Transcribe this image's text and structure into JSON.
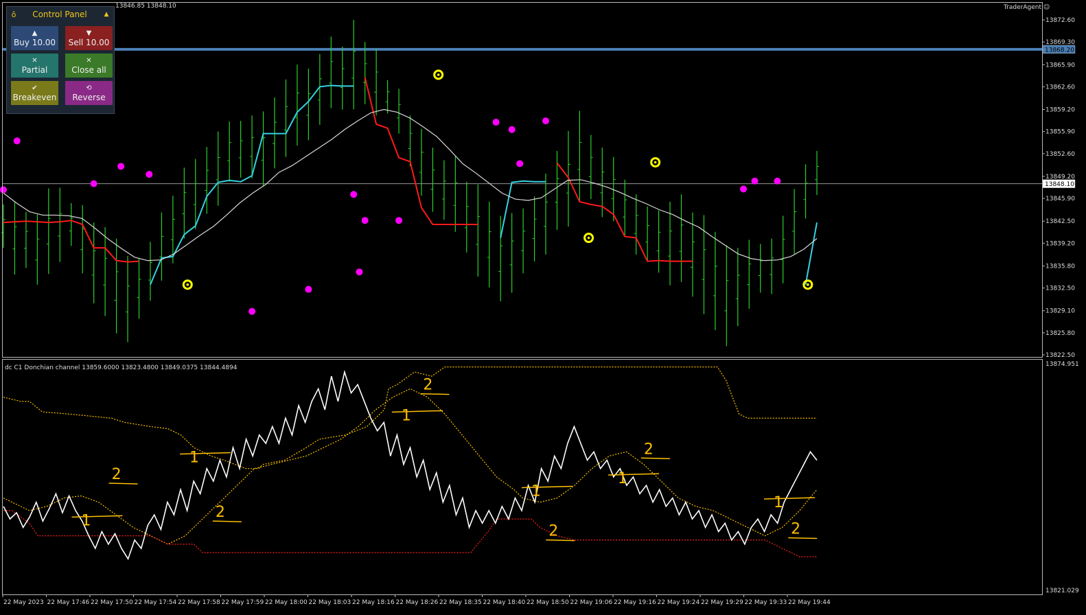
{
  "window": {
    "symbol_info": "13846.85 13848.10",
    "brand": "TraderAgent"
  },
  "control_panel": {
    "title": "Control Panel",
    "buttons": {
      "buy": "Buy 10.00",
      "sell": "Sell 10.00",
      "partial": "Partial",
      "close_all": "Close all",
      "breakeven": "Breakeven",
      "reverse": "Reverse"
    }
  },
  "colors": {
    "bars": "#2bd12b",
    "supertrend_up": "#35d3e3",
    "supertrend_down": "#ff1a1a",
    "ma": "#d8d8d8",
    "dots": "#ff00ff",
    "signal_rings": "#ffff00",
    "hline_blue": "#4a7fb5",
    "dc_upper": "#ffc000",
    "dc_lower": "#ff2020",
    "osc": "#ffffff",
    "annotations": "#ffc000"
  },
  "chart_data": [
    {
      "type": "bar",
      "name": "main",
      "ylim": [
        13822.5,
        13874.8
      ],
      "yticks": [
        "13872.60",
        "13869.30",
        "13865.90",
        "13862.60",
        "13859.20",
        "13855.90",
        "13852.60",
        "13849.20",
        "13845.90",
        "13842.50",
        "13839.20",
        "13835.80",
        "13832.50",
        "13829.10",
        "13825.80",
        "13822.50"
      ],
      "price_boxes": [
        {
          "value": 13868.2,
          "label": "13868.20"
        },
        {
          "value": 13848.1,
          "label": "13848.10"
        }
      ],
      "highs": [
        13845,
        13845.5,
        13843.9,
        13843.5,
        13847.4,
        13847.5,
        13845.2,
        13844.9,
        13842.3,
        13841.6,
        13839.9,
        13837.3,
        13837,
        13839.4,
        13843.8,
        13846.3,
        13850.5,
        13851.8,
        13853.6,
        13855.9,
        13857.4,
        13857.5,
        13858.3,
        13858.9,
        13861,
        13863.7,
        13865.9,
        13865.3,
        13867.5,
        13870.1,
        13868.6,
        13872.6,
        13869.3,
        13868.3,
        13863.6,
        13862.3,
        13858.3,
        13856.3,
        13853.5,
        13851.6,
        13852.2,
        13848.4,
        13848,
        13845.4,
        13843.3,
        13843.7,
        13844.4,
        13846.2,
        13849.6,
        13853,
        13856,
        13859,
        13855.4,
        13853.5,
        13852.1,
        13848.7,
        13846.5,
        13844.7,
        13844.1,
        13845.4,
        13846.5,
        13843.8,
        13843.4,
        13840.9,
        13838.9,
        13838.5,
        13839.7,
        13839.1,
        13839.9,
        13843.3,
        13847.3,
        13851,
        13853
      ],
      "lows": [
        13838.5,
        13834.5,
        13835.5,
        13833,
        13834.6,
        13836.4,
        13838.8,
        13834.7,
        13830.2,
        13828.3,
        13825.7,
        13824.4,
        13827.9,
        13830.6,
        13833.6,
        13836.2,
        13839.9,
        13841.3,
        13843.6,
        13844.8,
        13848.4,
        13849,
        13848.9,
        13847.7,
        13850.4,
        13852.1,
        13853.8,
        13854.6,
        13856.9,
        13859.4,
        13859.2,
        13859.2,
        13860,
        13858.3,
        13858.6,
        13855.6,
        13850.7,
        13846.3,
        13843.9,
        13842.7,
        13840.9,
        13837.8,
        13834.2,
        13832.6,
        13830.5,
        13831.8,
        13834.7,
        13836.5,
        13837.5,
        13841.2,
        13841.7,
        13845.5,
        13845.8,
        13843.1,
        13842.5,
        13840.1,
        13837.5,
        13836.5,
        13834.8,
        13832.9,
        13833.4,
        13831.2,
        13828.6,
        13826.2,
        13823.8,
        13826.8,
        13829.4,
        13831.8,
        13831.6,
        13833.2,
        13837.6,
        13842.9,
        13846.4
      ],
      "supertrend_up": [
        null,
        null,
        null,
        null,
        null,
        null,
        null,
        null,
        null,
        null,
        null,
        null,
        null,
        13833,
        13837,
        13837.2,
        13840.5,
        13841.8,
        13846.2,
        13848.3,
        13848.6,
        13848.4,
        13849.3,
        13855.6,
        13855.6,
        13855.6,
        13858.8,
        13860.4,
        13862.6,
        13862.8,
        13862.7,
        13862.7,
        null,
        null,
        null,
        null,
        null,
        null,
        null,
        null,
        null,
        null,
        null,
        null,
        13840,
        13848.3,
        13848.5,
        13848.4,
        13848.4,
        null,
        null,
        null,
        null,
        null,
        null,
        null,
        null,
        null,
        null,
        null,
        null,
        null,
        null,
        null,
        null,
        null,
        null,
        null,
        null,
        null,
        null,
        13833,
        13842.3
      ],
      "supertrend_dn": [
        13842.3,
        13842.4,
        13842.5,
        13842.4,
        13842.3,
        13842.4,
        13842.6,
        13842,
        13838.5,
        13838.5,
        13836.6,
        13836.4,
        13836.5,
        null,
        null,
        null,
        null,
        null,
        null,
        null,
        null,
        null,
        null,
        null,
        null,
        null,
        null,
        null,
        null,
        null,
        null,
        null,
        13864,
        13857,
        13856.4,
        13852,
        13851.4,
        13844.5,
        13842,
        13842,
        13842,
        13842,
        13842,
        null,
        null,
        null,
        null,
        null,
        null,
        13851.2,
        13849,
        13845.4,
        13845,
        13844.7,
        13843.5,
        13840.2,
        13840,
        13836.5,
        13836.6,
        13836.5,
        13836.5,
        13836.5,
        null,
        null,
        null,
        null,
        null,
        null,
        null,
        null,
        null,
        null,
        null
      ],
      "ma": [
        13846.7,
        13845.2,
        13843.9,
        13843.4,
        13843.4,
        13843.3,
        13842.9,
        13841.4,
        13839.8,
        13838.4,
        13837.1,
        13836.6,
        13836.7,
        13837.6,
        13839,
        13840.4,
        13841.7,
        13843.4,
        13845.2,
        13846.7,
        13848,
        13849.8,
        13850.8,
        13852.1,
        13853.4,
        13854.7,
        13856.2,
        13857.5,
        13858.7,
        13859.2,
        13858.8,
        13857.9,
        13856.6,
        13855.2,
        13853.2,
        13851.1,
        13849.7,
        13848.2,
        13846.7,
        13845.8,
        13845.6,
        13846,
        13847.3,
        13848.6,
        13848.7,
        13848.2,
        13847.6,
        13846.8,
        13845.9,
        13845.1,
        13844.2,
        13843.5,
        13842.5,
        13841.6,
        13840.2,
        13838.9,
        13837.6,
        13836.9,
        13836.6,
        13836.7,
        13837.2,
        13838.3,
        13839.9
      ],
      "dots": [
        {
          "i": 1.2,
          "y": 13854.5
        },
        {
          "i": 0,
          "y": 13847.2
        },
        {
          "i": 8,
          "y": 13848.1
        },
        {
          "i": 10.4,
          "y": 13850.7
        },
        {
          "i": 12.9,
          "y": 13849.5
        },
        {
          "i": 22,
          "y": 13829
        },
        {
          "i": 27,
          "y": 13832.3
        },
        {
          "i": 31,
          "y": 13846.5
        },
        {
          "i": 31.5,
          "y": 13834.9
        },
        {
          "i": 32,
          "y": 13842.6
        },
        {
          "i": 35,
          "y": 13842.6
        },
        {
          "i": 43.6,
          "y": 13857.3
        },
        {
          "i": 45,
          "y": 13856.2
        },
        {
          "i": 45.7,
          "y": 13851.1
        },
        {
          "i": 48,
          "y": 13857.5
        },
        {
          "i": 65.5,
          "y": 13847.3
        },
        {
          "i": 66.5,
          "y": 13848.5
        },
        {
          "i": 68.5,
          "y": 13848.5
        }
      ],
      "rings": [
        {
          "i": 16.3,
          "y": 13833
        },
        {
          "i": 38.5,
          "y": 13864.4
        },
        {
          "i": 51.8,
          "y": 13840
        },
        {
          "i": 57.7,
          "y": 13851.3
        },
        {
          "i": 71.2,
          "y": 13833
        }
      ]
    },
    {
      "type": "line",
      "name": "Donchian channel",
      "label": "dc C1  Donchian channel 13859.6000 13823.4800 13849.0375 13844.4894",
      "ylim": [
        13821.029,
        13874.951
      ],
      "yticks": [
        "13874.951",
        "13821.029"
      ],
      "osc": [
        13841,
        13838,
        13839.5,
        13836,
        13838.5,
        13842,
        13837.5,
        13840.5,
        13844,
        13839.5,
        13843.5,
        13840,
        13837.5,
        13834,
        13831,
        13835,
        13832,
        13834.5,
        13831,
        13828.5,
        13833,
        13831,
        13836.5,
        13839,
        13835.5,
        13842,
        13839,
        13845,
        13840,
        13847,
        13844,
        13850,
        13847,
        13852,
        13848,
        13855,
        13850,
        13857,
        13853,
        13858,
        13856,
        13860,
        13856,
        13862,
        13858,
        13865,
        13861,
        13866,
        13869,
        13864,
        13872,
        13866,
        13873,
        13868,
        13870,
        13866,
        13862,
        13859,
        13861,
        13853,
        13858,
        13851,
        13855,
        13848,
        13852,
        13845,
        13849,
        13842,
        13846,
        13839,
        13843,
        13836,
        13840,
        13837,
        13840,
        13837,
        13841,
        13838,
        13843,
        13840,
        13846,
        13842,
        13850,
        13847,
        13853,
        13850,
        13856,
        13860,
        13856,
        13852,
        13854,
        13850,
        13852,
        13848,
        13850,
        13846,
        13848,
        13844,
        13846,
        13842,
        13845,
        13841,
        13843,
        13839,
        13842,
        13838,
        13840,
        13836,
        13839,
        13835,
        13837,
        13833,
        13835,
        13832,
        13836,
        13838,
        13835,
        13839,
        13837,
        13842,
        13845,
        13848,
        13851,
        13854,
        13852
      ],
      "dc_upper": [
        [
          0,
          13867
        ],
        [
          4,
          13866
        ],
        [
          6,
          13866
        ],
        [
          9,
          13863.5
        ],
        [
          15,
          13863
        ],
        [
          20,
          13862.5
        ],
        [
          25,
          13862
        ],
        [
          28,
          13861
        ],
        [
          34,
          13860
        ],
        [
          38,
          13859.5
        ],
        [
          41,
          13858
        ],
        [
          44,
          13855
        ],
        [
          48,
          13853
        ],
        [
          51,
          13852
        ],
        [
          56,
          13850
        ],
        [
          59,
          13850
        ],
        [
          60,
          13851
        ],
        [
          65,
          13852
        ],
        [
          70,
          13855
        ],
        [
          73,
          13857
        ],
        [
          79,
          13858
        ],
        [
          84,
          13860
        ],
        [
          88,
          13864
        ],
        [
          89,
          13869
        ],
        [
          91,
          13870
        ],
        [
          95,
          13873
        ],
        [
          99,
          13872
        ],
        [
          102,
          13874.2
        ],
        [
          110,
          13874.2
        ],
        [
          130,
          13874.2
        ],
        [
          154,
          13874.2
        ],
        [
          165,
          13874.2
        ],
        [
          167,
          13871
        ],
        [
          170,
          13863
        ],
        [
          172,
          13862
        ],
        [
          188,
          13862
        ]
      ],
      "dc_mid": [
        [
          0,
          13843
        ],
        [
          6,
          13840
        ],
        [
          10,
          13841
        ],
        [
          14,
          13843
        ],
        [
          18,
          13843.5
        ],
        [
          22,
          13842
        ],
        [
          26,
          13839
        ],
        [
          30,
          13836
        ],
        [
          34,
          13834
        ],
        [
          38,
          13832
        ],
        [
          42,
          13834
        ],
        [
          46,
          13838
        ],
        [
          50,
          13842
        ],
        [
          54,
          13846
        ],
        [
          58,
          13850
        ],
        [
          62,
          13851
        ],
        [
          66,
          13852
        ],
        [
          70,
          13853
        ],
        [
          74,
          13855
        ],
        [
          78,
          13857
        ],
        [
          82,
          13860
        ],
        [
          86,
          13864
        ],
        [
          90,
          13867
        ],
        [
          94,
          13869
        ],
        [
          98,
          13867
        ],
        [
          102,
          13863
        ],
        [
          106,
          13858
        ],
        [
          110,
          13853
        ],
        [
          114,
          13848
        ],
        [
          118,
          13845
        ],
        [
          120,
          13843
        ],
        [
          124,
          13842
        ],
        [
          128,
          13843
        ],
        [
          132,
          13846
        ],
        [
          136,
          13850
        ],
        [
          140,
          13853
        ],
        [
          144,
          13854
        ],
        [
          148,
          13851
        ],
        [
          152,
          13847
        ],
        [
          156,
          13843
        ],
        [
          160,
          13841
        ],
        [
          164,
          13840
        ],
        [
          168,
          13838
        ],
        [
          172,
          13836
        ],
        [
          176,
          13834
        ],
        [
          180,
          13836
        ],
        [
          184,
          13840
        ],
        [
          188,
          13845
        ]
      ],
      "dc_lower": [
        [
          0,
          13840
        ],
        [
          2,
          13840
        ],
        [
          6,
          13837
        ],
        [
          8,
          13834
        ],
        [
          16,
          13834
        ],
        [
          20,
          13834
        ],
        [
          24,
          13834
        ],
        [
          34,
          13834
        ],
        [
          38,
          13832
        ],
        [
          44,
          13832
        ],
        [
          46,
          13830
        ],
        [
          64,
          13830
        ],
        [
          108,
          13830
        ],
        [
          112,
          13835
        ],
        [
          114,
          13838
        ],
        [
          122,
          13838
        ],
        [
          124,
          13836
        ],
        [
          128,
          13834
        ],
        [
          132,
          13833
        ],
        [
          140,
          13833
        ],
        [
          150,
          13833
        ],
        [
          166,
          13833
        ],
        [
          176,
          13833
        ],
        [
          180,
          13831
        ],
        [
          184,
          13829
        ],
        [
          188,
          13829
        ]
      ],
      "annotations": [
        {
          "text": "2",
          "i": 25,
          "y": 13847.5
        },
        {
          "text": "1",
          "i": 18,
          "y": 13836.5
        },
        {
          "text": "1",
          "i": 43,
          "y": 13851.5
        },
        {
          "text": "2",
          "i": 49,
          "y": 13838.5
        },
        {
          "text": "2",
          "i": 97,
          "y": 13868.8
        },
        {
          "text": "1",
          "i": 92,
          "y": 13861.5
        },
        {
          "text": "1",
          "i": 122,
          "y": 13843.5
        },
        {
          "text": "2",
          "i": 126,
          "y": 13834
        },
        {
          "text": "2",
          "i": 148,
          "y": 13853.5
        },
        {
          "text": "1",
          "i": 142,
          "y": 13846.5
        },
        {
          "text": "1",
          "i": 178,
          "y": 13840.8
        },
        {
          "text": "2",
          "i": 182,
          "y": 13834.5
        }
      ]
    }
  ],
  "time_axis": [
    "22 May 2023",
    "22 May 17:46",
    "22 May 17:50",
    "22 May 17:54",
    "22 May 17:58",
    "22 May 17:59",
    "22 May 18:00",
    "22 May 18:03",
    "22 May 18:16",
    "22 May 18:26",
    "22 May 18:35",
    "22 May 18:40",
    "22 May 18:50",
    "22 May 19:06",
    "22 May 19:16",
    "22 May 19:24",
    "22 May 19:29",
    "22 May 19:33",
    "22 May 19:44"
  ]
}
